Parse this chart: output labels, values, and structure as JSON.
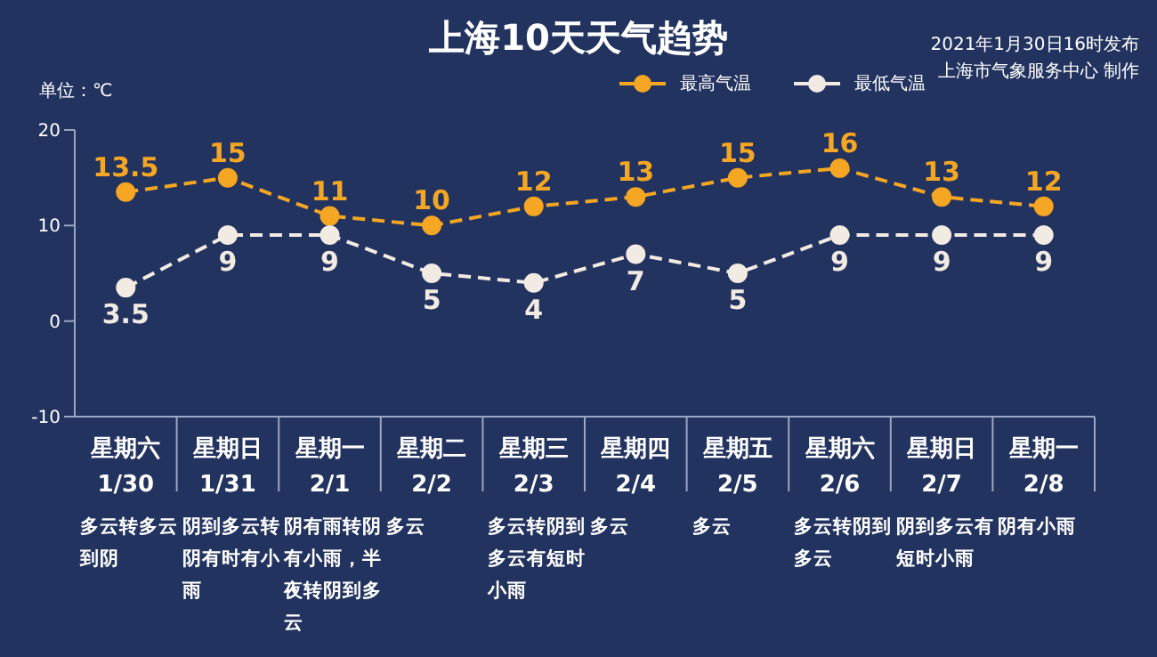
{
  "chart_data": {
    "type": "line",
    "title": "上海10天天气趋势",
    "ylabel": "单位：℃",
    "annotations": [
      "2021年1月30日16时发布",
      "上海市气象服务中心 制作"
    ],
    "categories": [
      "星期六\n1/30\n多云转多云到阴",
      "星期日\n1/31\n阴到多云转阴有时有小雨",
      "星期一\n2/1\n阴有雨转阴有小雨，半夜转阴到多云",
      "星期二\n2/2\n多云",
      "星期三\n2/3\n多云转阴到多云有短时小雨",
      "星期四\n2/4\n多云",
      "星期五\n2/5\n多云",
      "星期六\n2/6\n多云转阴到多云",
      "星期日\n2/7\n阴到多云有短时小雨",
      "星期一\n2/8\n阴有小雨"
    ],
    "series": [
      {
        "name": "最高气温",
        "color": "#f5a623",
        "values": [
          13.5,
          15,
          11,
          10,
          12,
          13,
          15,
          16,
          13,
          12
        ]
      },
      {
        "name": "最低气温",
        "color": "#f2ebe4",
        "values": [
          3.5,
          9,
          9,
          5,
          4,
          7,
          5,
          9,
          9,
          9
        ]
      }
    ],
    "ylim": [
      -10,
      20
    ],
    "yticks": [
      -10,
      0,
      10,
      20
    ],
    "grid": false,
    "legend": "top right",
    "data_labels": true,
    "marker": "circle",
    "line_style": "dashed"
  }
}
